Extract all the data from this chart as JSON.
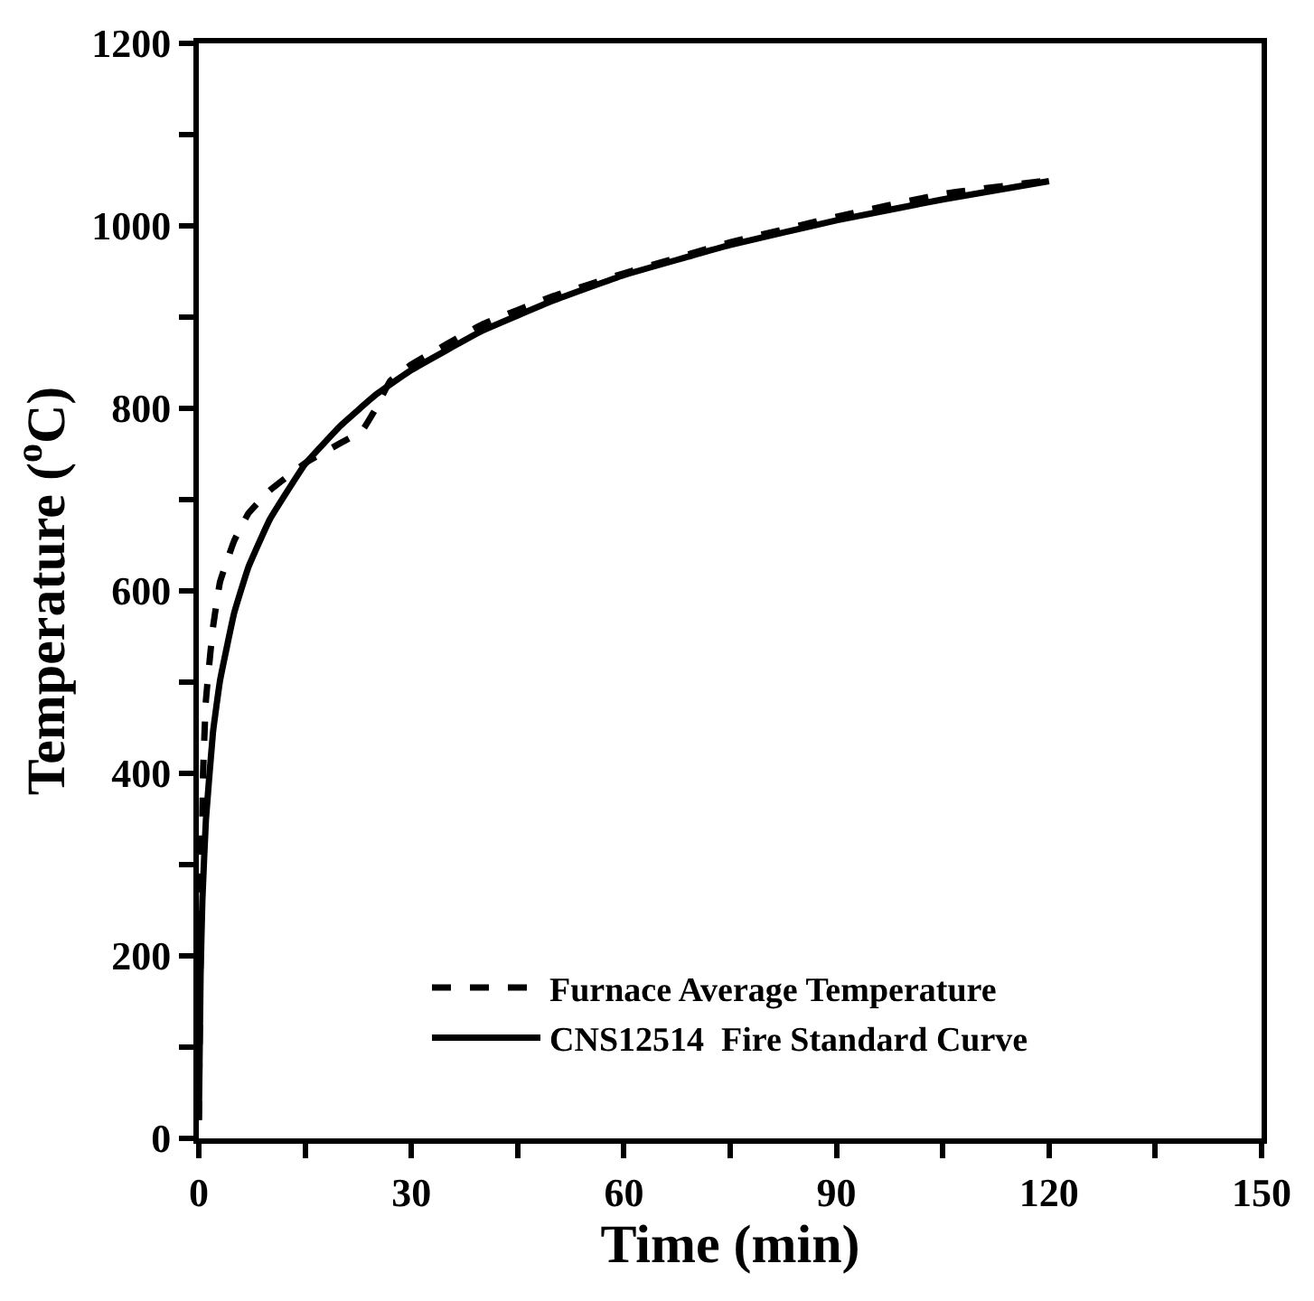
{
  "chart_data": {
    "type": "line",
    "xlabel": "Time (min)",
    "ylabel": "Temperature ($^{o}$C)",
    "xlim": [
      0,
      150
    ],
    "ylim": [
      0,
      1200
    ],
    "xticks": [
      0,
      {
        "value": 15,
        "label": null
      },
      30,
      {
        "value": 45,
        "label": null
      },
      60,
      {
        "value": 75,
        "label": null
      },
      90,
      {
        "value": 105,
        "label": null
      },
      120,
      {
        "value": 135,
        "label": null
      },
      150
    ],
    "yticks": [
      0,
      {
        "value": 100,
        "label": null
      },
      200,
      {
        "value": 300,
        "label": null
      },
      400,
      {
        "value": 500,
        "label": null
      },
      600,
      {
        "value": 700,
        "label": null
      },
      800,
      {
        "value": 900,
        "label": null
      },
      1000,
      {
        "value": 1100,
        "label": null
      },
      1200
    ],
    "legend": "bottom",
    "marker": "none",
    "series": [
      {
        "name": "Furnace Average Temperature",
        "color": "#000000",
        "line_style": "dashed",
        "x": [
          0,
          0.3,
          0.6,
          1,
          2,
          3,
          5,
          7,
          10,
          15,
          20,
          23,
          25,
          27,
          30,
          40,
          50,
          60,
          75,
          90,
          105,
          120
        ],
        "values": [
          20,
          250,
          400,
          480,
          560,
          610,
          655,
          685,
          710,
          740,
          762,
          775,
          800,
          830,
          848,
          892,
          923,
          948,
          982,
          1010,
          1035,
          1050
        ]
      },
      {
        "name": "CNS12514  Fire Standard Curve",
        "color": "#000000",
        "line_style": "solid",
        "x": [
          0,
          0.25,
          0.5,
          1,
          2,
          3,
          5,
          7,
          10,
          15,
          20,
          25,
          30,
          40,
          50,
          60,
          75,
          90,
          105,
          120
        ],
        "values": [
          20,
          180,
          261,
          349,
          445,
          502,
          576,
          626,
          678,
          739,
          781,
          815,
          842,
          885,
          918,
          946,
          979,
          1006,
          1029,
          1049
        ]
      }
    ]
  }
}
